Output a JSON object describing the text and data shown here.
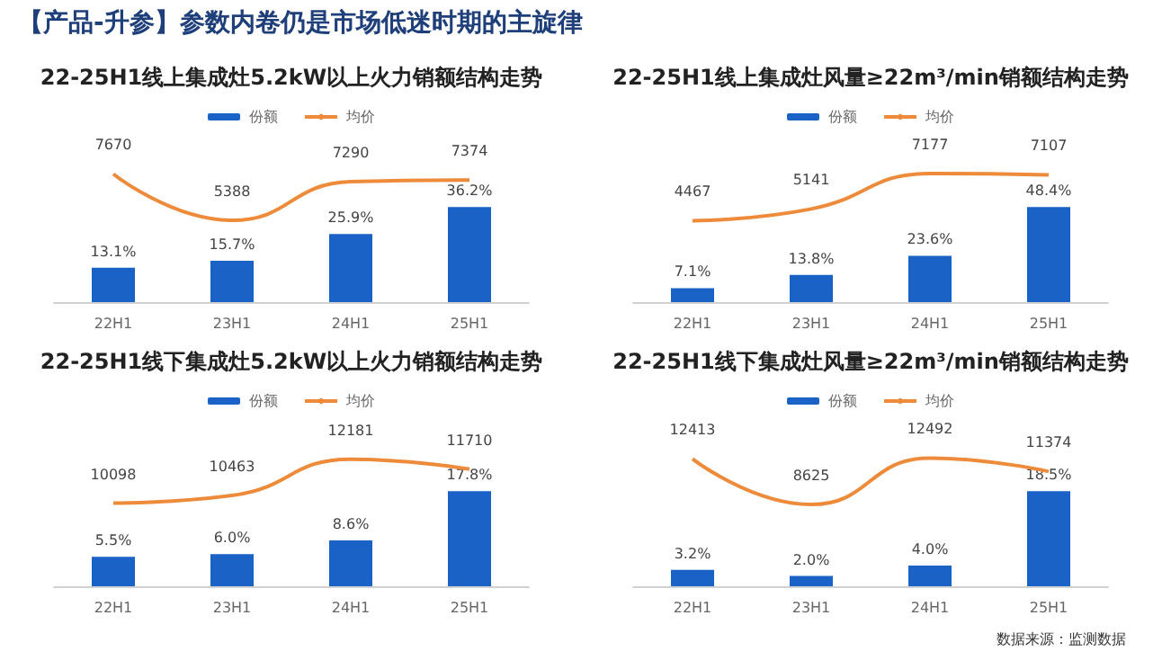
{
  "chart_data": [
    {
      "type": "bar",
      "title": "22-25H1线上集成灶5.2kW以上火力销额结构走势",
      "annotations": [
        "【产品-升参】参数内卷仍是市场低迷时期的主旋律"
      ],
      "categories": [
        "22H1",
        "23H1",
        "24H1",
        "25H1"
      ],
      "legend": "top",
      "tick_labels": "x",
      "marker": "none",
      "series": [
        {
          "name": "份额",
          "color": "#1a62c6",
          "values": [
            13.1,
            15.7,
            25.9,
            36.2
          ],
          "value_labels": [
            "13.1%",
            "15.7%",
            "25.9%",
            "36.2%"
          ]
        },
        {
          "name": "均价",
          "type": "line",
          "axis": "y2",
          "color": "#ed8b3a",
          "values": [
            7670,
            5388,
            7290,
            7374
          ],
          "value_labels": [
            "7670",
            "5388",
            "7290",
            "7374"
          ]
        }
      ]
    },
    {
      "type": "bar",
      "title": "22-25H1线上集成灶风量≥22m³/min销额结构走势",
      "categories": [
        "22H1",
        "23H1",
        "24H1",
        "25H1"
      ],
      "legend": "top",
      "tick_labels": "x",
      "marker": "none",
      "series": [
        {
          "name": "份额",
          "color": "#1a62c6",
          "values": [
            7.1,
            13.8,
            23.6,
            48.4
          ],
          "value_labels": [
            "7.1%",
            "13.8%",
            "23.6%",
            "48.4%"
          ]
        },
        {
          "name": "均价",
          "type": "line",
          "axis": "y2",
          "color": "#ed8b3a",
          "values": [
            4467,
            5141,
            7177,
            7107
          ],
          "value_labels": [
            "4467",
            "5141",
            "7177",
            "7107"
          ]
        }
      ]
    },
    {
      "type": "bar",
      "title": "22-25H1线下集成灶5.2kW以上火力销额结构走势",
      "categories": [
        "22H1",
        "23H1",
        "24H1",
        "25H1"
      ],
      "legend": "top",
      "tick_labels": "x",
      "marker": "none",
      "series": [
        {
          "name": "份额",
          "color": "#1a62c6",
          "values": [
            5.5,
            6.0,
            8.6,
            17.8
          ],
          "value_labels": [
            "5.5%",
            "6.0%",
            "8.6%",
            "17.8%"
          ]
        },
        {
          "name": "均价",
          "type": "line",
          "axis": "y2",
          "color": "#ed8b3a",
          "values": [
            10098,
            10463,
            12181,
            11710
          ],
          "value_labels": [
            "10098",
            "10463",
            "12181",
            "11710"
          ]
        }
      ]
    },
    {
      "type": "bar",
      "title": "22-25H1线下集成灶风量≥22m³/min销额结构走势",
      "annotations": [
        "数据来源：监测数据"
      ],
      "categories": [
        "22H1",
        "23H1",
        "24H1",
        "25H1"
      ],
      "legend": "top",
      "tick_labels": "x",
      "marker": "none",
      "series": [
        {
          "name": "份额",
          "color": "#1a62c6",
          "values": [
            3.2,
            2.0,
            4.0,
            18.5
          ],
          "value_labels": [
            "3.2%",
            "2.0%",
            "4.0%",
            "18.5%"
          ]
        },
        {
          "name": "均价",
          "type": "line",
          "axis": "y2",
          "color": "#ed8b3a",
          "values": [
            12413,
            8625,
            12492,
            11374
          ],
          "value_labels": [
            "12413",
            "8625",
            "12492",
            "11374"
          ]
        }
      ]
    }
  ]
}
